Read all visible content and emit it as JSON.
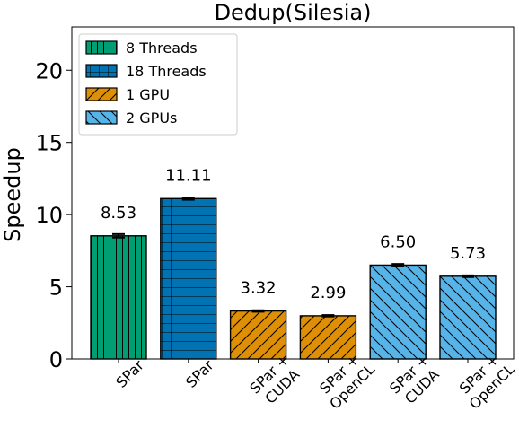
{
  "chart_data": {
    "type": "bar",
    "title": "Dedup(Silesia)",
    "ylabel": "Speedup",
    "xlabel": "",
    "ylim": [
      0,
      23
    ],
    "yticks": [
      0,
      5,
      10,
      15,
      20
    ],
    "grid": false,
    "legend_position": "top-left",
    "categories": [
      "SPar",
      "SPar",
      "SPar +\nCUDA",
      "SPar +\nOpenCL",
      "SPar +\nCUDA",
      "SPar +\nOpenCL"
    ],
    "series": [
      {
        "name": "8 Threads",
        "color": "#029e73",
        "pattern": "vertical-lines",
        "indices": [
          0
        ]
      },
      {
        "name": "18 Threads",
        "color": "#0173b2",
        "pattern": "grid",
        "indices": [
          1
        ]
      },
      {
        "name": "1 GPU",
        "color": "#de8f05",
        "pattern": "forward-diagonal",
        "indices": [
          2,
          3
        ]
      },
      {
        "name": "2 GPUs",
        "color": "#56b4e9",
        "pattern": "back-diagonal",
        "indices": [
          4,
          5
        ]
      }
    ],
    "values": [
      8.53,
      11.11,
      3.32,
      2.99,
      6.5,
      5.73
    ],
    "value_labels": [
      "8.53",
      "11.11",
      "3.32",
      "2.99",
      "6.50",
      "5.73"
    ],
    "error": [
      0.12,
      0.08,
      0.05,
      0.05,
      0.08,
      0.06
    ]
  }
}
